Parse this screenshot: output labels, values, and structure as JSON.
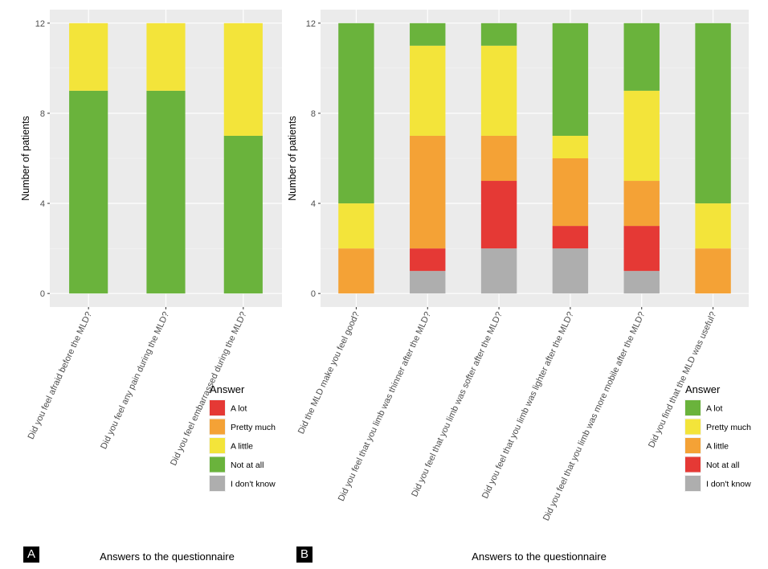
{
  "panels": [
    {
      "tag": "A",
      "xlabel": "Answers to the questionnaire",
      "ylabel": "Number of patients",
      "legend_title": "Answer"
    },
    {
      "tag": "B",
      "xlabel": "Answers to the questionnaire",
      "ylabel": "Number of patients",
      "legend_title": "Answer"
    }
  ],
  "chart_data": [
    {
      "type": "bar",
      "stacked": true,
      "title": "",
      "xlabel": "Answers to the questionnaire",
      "ylabel": "Number of patients",
      "ylim": [
        0,
        12
      ],
      "yticks": [
        0,
        4,
        8,
        12
      ],
      "grid": true,
      "legend_title": "Answer",
      "legend_position": "right",
      "categories": [
        "Did you feel afraid before the MLD?",
        "Did you feel any pain during the MLD?",
        "Did you feel embarrassed during the MLD?"
      ],
      "series": [
        {
          "name": "A lot",
          "color": "#e53935",
          "values": [
            0,
            0,
            0
          ]
        },
        {
          "name": "Pretty much",
          "color": "#f4a236",
          "values": [
            0,
            0,
            0
          ]
        },
        {
          "name": "A little",
          "color": "#f3e43a",
          "values": [
            3,
            3,
            5
          ]
        },
        {
          "name": "Not at all",
          "color": "#6ab33c",
          "values": [
            9,
            9,
            7
          ]
        },
        {
          "name": "I don't know",
          "color": "#aeaeae",
          "values": [
            0,
            0,
            0
          ]
        }
      ],
      "stack_order_bottom_to_top": [
        "I don't know",
        "Not at all",
        "A little",
        "Pretty much",
        "A lot"
      ]
    },
    {
      "type": "bar",
      "stacked": true,
      "title": "",
      "xlabel": "Answers to the questionnaire",
      "ylabel": "Number of patients",
      "ylim": [
        0,
        12
      ],
      "yticks": [
        0,
        4,
        8,
        12
      ],
      "grid": true,
      "legend_title": "Answer",
      "legend_position": "right",
      "categories": [
        "Did the MLD make you feel good?",
        "Did you feel that you limb was thinner after the MLD?",
        "Did you feel that you limb was softer after the MLD?",
        "Did you feel that you limb was lighter after the MLD?",
        "Did you feel that you limb was more mobile after the MLD?",
        "Did you find that the MLD was useful?"
      ],
      "series": [
        {
          "name": "A lot",
          "color": "#6ab33c",
          "values": [
            8,
            1,
            1,
            5,
            3,
            8
          ]
        },
        {
          "name": "Pretty much",
          "color": "#f3e43a",
          "values": [
            2,
            4,
            4,
            1,
            4,
            2
          ]
        },
        {
          "name": "A little",
          "color": "#f4a236",
          "values": [
            2,
            5,
            2,
            3,
            2,
            2
          ]
        },
        {
          "name": "Not at all",
          "color": "#e53935",
          "values": [
            0,
            1,
            3,
            1,
            2,
            0
          ]
        },
        {
          "name": "I don't know",
          "color": "#aeaeae",
          "values": [
            0,
            1,
            2,
            2,
            1,
            0
          ]
        }
      ],
      "stack_order_bottom_to_top": [
        "I don't know",
        "Not at all",
        "A little",
        "Pretty much",
        "A lot"
      ]
    }
  ]
}
